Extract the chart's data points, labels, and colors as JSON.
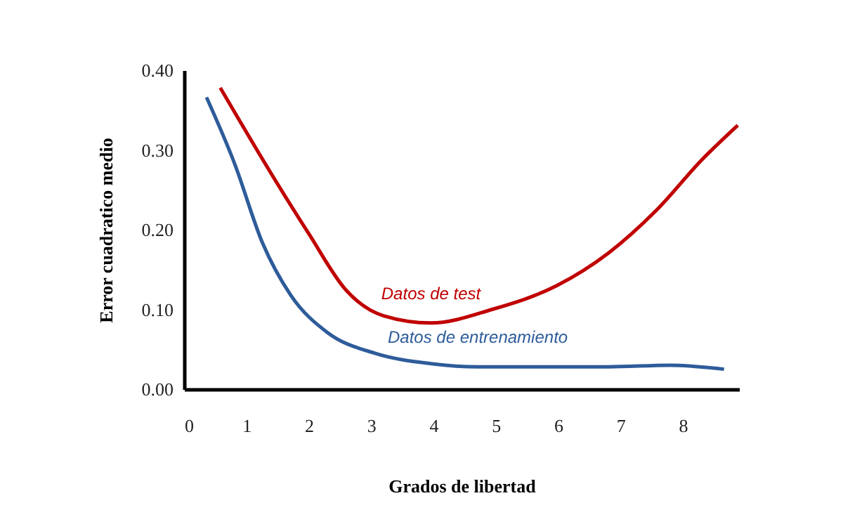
{
  "chart_data": {
    "type": "line",
    "xlabel": "Grados de libertad",
    "ylabel": "Error cuadratico medio",
    "xlim": [
      0,
      8.9
    ],
    "xticks": [
      0,
      1,
      2,
      3,
      4,
      5,
      6,
      7,
      8
    ],
    "ylim": [
      0,
      0.4
    ],
    "yticks": [
      {
        "value": 0,
        "label": "0.00"
      },
      {
        "value": 0.1,
        "label": "0.10"
      },
      {
        "value": 0.2,
        "label": "0.20"
      },
      {
        "value": 0.3,
        "label": "0.30"
      },
      {
        "value": 0.4,
        "label": "0.40"
      }
    ],
    "grid": false,
    "legend": false,
    "marker": "none",
    "line_style": "solid",
    "series": [
      {
        "name": "Datos de test",
        "color": "#c00000",
        "x": [
          0.58,
          1.4,
          2.0,
          2.6,
          3.2,
          3.96,
          4.94,
          5.98,
          6.81,
          7.57,
          8.32,
          8.88
        ],
        "values": [
          0.378,
          0.27,
          0.195,
          0.124,
          0.092,
          0.083,
          0.1,
          0.13,
          0.171,
          0.224,
          0.289,
          0.331
        ]
      },
      {
        "name": "Datos de entrenamiento",
        "color": "#2e5c9a",
        "x": [
          0.36,
          0.81,
          1.26,
          1.71,
          2.3,
          3.06,
          3.96,
          4.71,
          5.68,
          6.81,
          7.79,
          8.66
        ],
        "values": [
          0.366,
          0.283,
          0.183,
          0.118,
          0.071,
          0.045,
          0.032,
          0.028,
          0.028,
          0.028,
          0.03,
          0.025
        ]
      }
    ]
  }
}
